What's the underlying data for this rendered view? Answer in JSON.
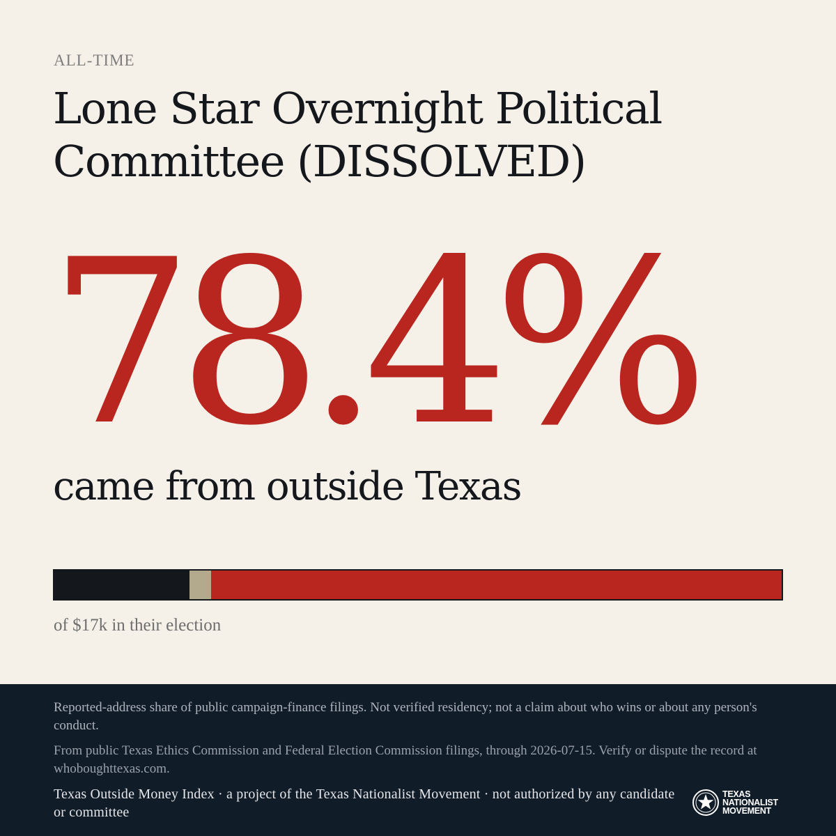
{
  "header": {
    "eyebrow": "ALL-TIME",
    "title": "Lone Star Overnight Political Committee (DISSOLVED)"
  },
  "stat": {
    "percent": "78.4%",
    "caption": "came from outside Texas"
  },
  "bar": {
    "segments": [
      {
        "key": "texas",
        "fraction": 0.186,
        "color": "#14171c"
      },
      {
        "key": "unknown",
        "fraction": 0.03,
        "color": "#b3a98d"
      },
      {
        "key": "outside",
        "fraction": 0.784,
        "color": "#b8261f"
      }
    ],
    "note": "of $17k in their election"
  },
  "footer": {
    "disclaimer": "Reported-address share of public campaign-finance filings. Not verified residency; not a claim about who wins or about any person's conduct.",
    "source": "From public Texas Ethics Commission and Federal Election Commission filings, through 2026-07-15. Verify or dispute the record at whoboughttexas.com.",
    "credit": "Texas Outside Money Index · a project of the Texas Nationalist Movement · not authorized by any candidate or committee",
    "logo": {
      "icon": "star-seal-icon",
      "line1": "TEXAS",
      "line2": "NATIONALIST",
      "line3": "MOVEMENT"
    }
  }
}
